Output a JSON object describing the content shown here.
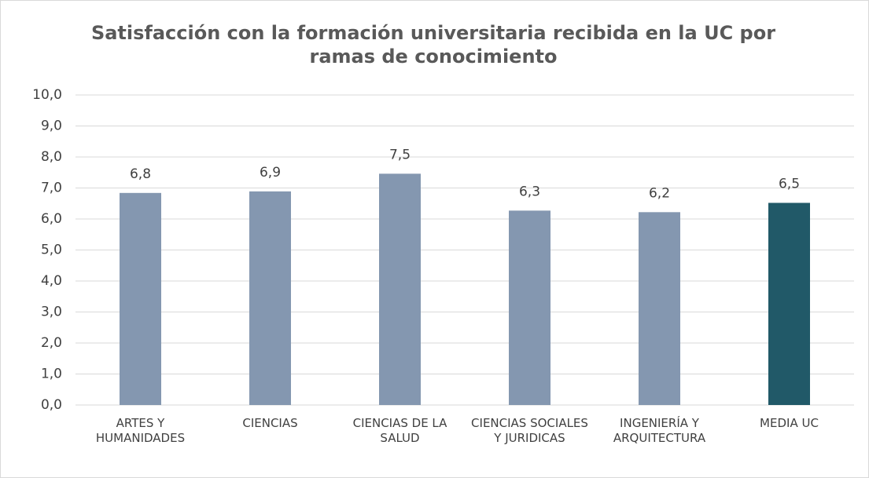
{
  "chart_data": {
    "type": "bar",
    "title": "Satisfacción con la formación universitaria recibida en la UC por ramas de conocimiento",
    "categories": [
      "ARTES Y HUMANIDADES",
      "CIENCIAS",
      "CIENCIAS DE LA SALUD",
      "CIENCIAS SOCIALES Y JURIDICAS",
      "INGENIERÍA Y ARQUITECTURA",
      "MEDIA UC"
    ],
    "values": [
      6.84,
      6.89,
      7.46,
      6.27,
      6.22,
      6.52
    ],
    "value_labels": [
      "6,8",
      "6,9",
      "7,5",
      "6,3",
      "6,2",
      "6,5"
    ],
    "colors": [
      "#8497b0",
      "#8497b0",
      "#8497b0",
      "#8497b0",
      "#8497b0",
      "#215968"
    ],
    "ylim": [
      0,
      10
    ],
    "yticks": [
      {
        "value": 0,
        "label": "0,0"
      },
      {
        "value": 1,
        "label": "1,0"
      },
      {
        "value": 2,
        "label": "2,0"
      },
      {
        "value": 3,
        "label": "3,0"
      },
      {
        "value": 4,
        "label": "4,0"
      },
      {
        "value": 5,
        "label": "5,0"
      },
      {
        "value": 6,
        "label": "6,0"
      },
      {
        "value": 7,
        "label": "7,0"
      },
      {
        "value": 8,
        "label": "8,0"
      },
      {
        "value": 9,
        "label": "9,0"
      },
      {
        "value": 10,
        "label": "10,0"
      }
    ],
    "grid": true
  }
}
